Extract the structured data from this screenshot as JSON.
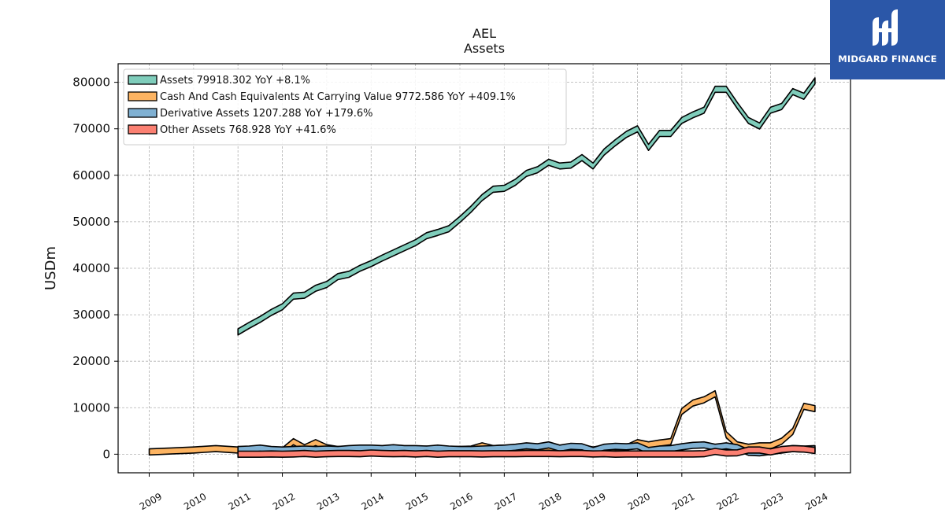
{
  "title": "AEL",
  "subtitle": "Assets",
  "brand": {
    "name": "MIDGARD FINANCE",
    "color": "#2b57a8",
    "icon": "midgard-logo-icon"
  },
  "chart_data": {
    "type": "line",
    "title": "AEL",
    "subtitle": "Assets",
    "xlabel": "",
    "ylabel": "USDm",
    "xlim": [
      2008.3,
      2024.8
    ],
    "ylim": [
      -4000,
      84000
    ],
    "x_ticks": [
      2009,
      2010,
      2011,
      2012,
      2013,
      2014,
      2015,
      2016,
      2017,
      2018,
      2019,
      2020,
      2021,
      2022,
      2023,
      2024
    ],
    "y_ticks": [
      0,
      10000,
      20000,
      30000,
      40000,
      50000,
      60000,
      70000,
      80000
    ],
    "grid": true,
    "legend_position": "top-left",
    "series": [
      {
        "name": "Assets",
        "legend": "Assets  79918.302 YoY +8.1%",
        "color": "#7fcdbb",
        "x": [
          2011.0,
          2011.25,
          2011.5,
          2011.75,
          2012.0,
          2012.25,
          2012.5,
          2012.75,
          2013.0,
          2013.25,
          2013.5,
          2013.75,
          2014.0,
          2014.25,
          2014.5,
          2014.75,
          2015.0,
          2015.25,
          2015.5,
          2015.75,
          2016.0,
          2016.25,
          2016.5,
          2016.75,
          2017.0,
          2017.25,
          2017.5,
          2017.75,
          2018.0,
          2018.25,
          2018.5,
          2018.75,
          2019.0,
          2019.25,
          2019.5,
          2019.75,
          2020.0,
          2020.25,
          2020.5,
          2020.75,
          2021.0,
          2021.25,
          2021.5,
          2021.75,
          2022.0,
          2022.25,
          2022.5,
          2022.75,
          2023.0,
          2023.25,
          2023.5,
          2023.75,
          2024.0
        ],
        "y": [
          26300,
          27700,
          29000,
          30500,
          31700,
          34000,
          34200,
          35700,
          36500,
          38200,
          38700,
          40000,
          41000,
          42200,
          43300,
          44400,
          45500,
          47000,
          47700,
          48500,
          50500,
          52700,
          55200,
          57000,
          57200,
          58500,
          60400,
          61200,
          62800,
          62000,
          62200,
          63800,
          62000,
          65000,
          67000,
          68800,
          70000,
          66000,
          69000,
          69000,
          71800,
          73000,
          74000,
          78500,
          78500,
          75000,
          71800,
          70600,
          74000,
          74800,
          78000,
          77000,
          80300
        ]
      },
      {
        "name": "Cash And Cash Equivalents At Carrying Value",
        "legend": "Cash And Cash Equivalents At Carrying Value  9772.586 YoY +409.1%",
        "color": "#fdb462",
        "x": [
          2009.0,
          2009.5,
          2010.0,
          2010.5,
          2011.0,
          2011.25,
          2011.5,
          2011.75,
          2012.0,
          2012.25,
          2012.5,
          2012.75,
          2013.0,
          2013.25,
          2013.5,
          2013.75,
          2014.0,
          2014.25,
          2014.5,
          2014.75,
          2015.0,
          2015.25,
          2015.5,
          2015.75,
          2016.0,
          2016.25,
          2016.5,
          2016.75,
          2017.0,
          2017.25,
          2017.5,
          2017.75,
          2018.0,
          2018.25,
          2018.5,
          2018.75,
          2019.0,
          2019.25,
          2019.5,
          2019.75,
          2020.0,
          2020.25,
          2020.5,
          2020.75,
          2021.0,
          2021.25,
          2021.5,
          2021.75,
          2022.0,
          2022.25,
          2022.5,
          2022.75,
          2023.0,
          2023.25,
          2023.5,
          2023.75,
          2024.0
        ],
        "y": [
          500,
          700,
          900,
          1200,
          900,
          700,
          800,
          600,
          700,
          2700,
          1400,
          2500,
          1400,
          1000,
          1100,
          1000,
          1100,
          1000,
          1200,
          1000,
          1000,
          1100,
          900,
          1000,
          1000,
          1100,
          1800,
          1200,
          1300,
          1300,
          1300,
          1400,
          1500,
          1200,
          1600,
          1400,
          900,
          1300,
          1400,
          1400,
          2500,
          2000,
          2400,
          2700,
          9200,
          11000,
          11700,
          13000,
          4200,
          2000,
          1500,
          1800,
          1800,
          2800,
          4900,
          10300,
          9800
        ]
      },
      {
        "name": "Derivative Assets",
        "legend": "Derivative Assets  1207.288 YoY +179.6%",
        "color": "#80b1d3",
        "x": [
          2011.0,
          2011.25,
          2011.5,
          2011.75,
          2012.0,
          2012.25,
          2012.5,
          2012.75,
          2013.0,
          2013.25,
          2013.5,
          2013.75,
          2014.0,
          2014.25,
          2014.5,
          2014.75,
          2015.0,
          2015.25,
          2015.5,
          2015.75,
          2016.0,
          2016.25,
          2016.5,
          2016.75,
          2017.0,
          2017.25,
          2017.5,
          2017.75,
          2018.0,
          2018.25,
          2018.5,
          2018.75,
          2019.0,
          2019.25,
          2019.5,
          2019.75,
          2020.0,
          2020.25,
          2020.5,
          2020.75,
          2021.0,
          2021.25,
          2021.5,
          2021.75,
          2022.0,
          2022.25,
          2022.5,
          2022.75,
          2023.0,
          2023.25,
          2023.5,
          2023.75,
          2024.0
        ],
        "y": [
          1000,
          1100,
          1300,
          1000,
          900,
          1000,
          1100,
          1000,
          1100,
          1000,
          1200,
          1300,
          1300,
          1200,
          1400,
          1200,
          1200,
          1100,
          1300,
          1100,
          1000,
          1000,
          1100,
          1200,
          1300,
          1500,
          1800,
          1600,
          2000,
          1300,
          1700,
          1600,
          800,
          1500,
          1700,
          1600,
          1800,
          800,
          1100,
          1200,
          1600,
          1900,
          2000,
          1500,
          1800,
          1400,
          400,
          300,
          600,
          900,
          1200,
          1100,
          1200
        ]
      },
      {
        "name": "Other Assets",
        "legend": "Other Assets  768.928 YoY +41.6%",
        "color": "#fb8072",
        "x": [
          2011.0,
          2011.25,
          2011.5,
          2011.75,
          2012.0,
          2012.25,
          2012.5,
          2012.75,
          2013.0,
          2013.25,
          2013.5,
          2013.75,
          2014.0,
          2014.25,
          2014.5,
          2014.75,
          2015.0,
          2015.25,
          2015.5,
          2015.75,
          2016.0,
          2016.25,
          2016.5,
          2016.75,
          2017.0,
          2017.25,
          2017.5,
          2017.75,
          2018.0,
          2018.25,
          2018.5,
          2018.75,
          2019.0,
          2019.25,
          2019.5,
          2019.75,
          2020.0,
          2020.25,
          2020.5,
          2020.75,
          2021.0,
          2021.25,
          2021.5,
          2021.75,
          2022.0,
          2022.25,
          2022.5,
          2022.75,
          2023.0,
          2023.25,
          2023.5,
          2023.75,
          2024.0
        ],
        "y": [
          0,
          0,
          0,
          50,
          0,
          50,
          150,
          0,
          100,
          150,
          150,
          100,
          250,
          150,
          100,
          150,
          50,
          150,
          0,
          100,
          100,
          100,
          50,
          100,
          100,
          100,
          150,
          150,
          150,
          100,
          150,
          150,
          50,
          100,
          0,
          50,
          50,
          50,
          50,
          50,
          50,
          50,
          100,
          600,
          250,
          300,
          900,
          900,
          500,
          1000,
          1200,
          1100,
          800
        ]
      }
    ]
  }
}
